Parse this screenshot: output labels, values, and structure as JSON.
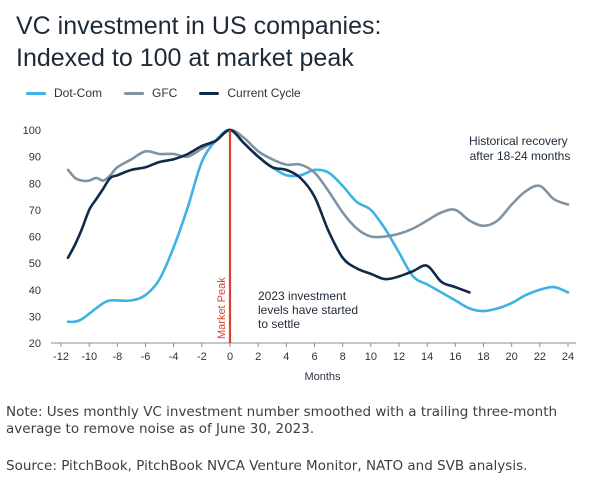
{
  "chart_data": {
    "type": "line",
    "title": "VC investment in US companies: Indexed to 100 at market peak",
    "title_lines": [
      "VC investment in US companies:",
      "Indexed to 100 at market peak"
    ],
    "xlabel": "Months",
    "ylabel": "",
    "xlim": [
      -12,
      24
    ],
    "ylim": [
      20,
      100
    ],
    "xticks": [
      -12,
      -10,
      -8,
      -6,
      -4,
      -2,
      0,
      2,
      4,
      6,
      8,
      10,
      12,
      14,
      16,
      18,
      20,
      22,
      24
    ],
    "xtick_labels": [
      "-12",
      "-10",
      "-8",
      "-6",
      "-4",
      "-2",
      "0",
      "2",
      "4",
      "6",
      "8",
      "10",
      "12",
      "14",
      "16",
      "18",
      "20",
      "22",
      "24"
    ],
    "yticks": [
      20,
      30,
      40,
      50,
      60,
      70,
      80,
      90,
      100
    ],
    "ytick_labels": [
      "20",
      "30",
      "40",
      "50",
      "60",
      "70",
      "80",
      "90",
      "100"
    ],
    "grid": false,
    "legend_position": "top-left",
    "series": [
      {
        "name": "Dot-Com",
        "color": "#3db3e3",
        "x": [
          -11.5,
          -11,
          -10.5,
          -10,
          -9,
          -8.5,
          -8,
          -7,
          -6,
          -5,
          -4,
          -3,
          -2,
          -1,
          0,
          1,
          2,
          3,
          4,
          5,
          6,
          7,
          8,
          9,
          10,
          11,
          12,
          13,
          14,
          15,
          16,
          17,
          18,
          19,
          20,
          21,
          22,
          23,
          24
        ],
        "values": [
          28,
          28,
          29,
          31,
          35,
          36,
          36,
          36,
          38,
          44,
          56,
          71,
          88,
          96,
          100,
          95,
          90,
          86,
          83,
          83,
          85,
          84,
          79,
          73,
          70,
          63,
          54,
          45,
          42,
          39,
          36,
          33,
          32,
          33,
          35,
          38,
          40,
          41,
          39
        ]
      },
      {
        "name": "GFC",
        "color": "#7f93a3",
        "x": [
          -11.5,
          -11,
          -10.5,
          -10,
          -9.5,
          -9,
          -8.5,
          -8,
          -7,
          -6,
          -5,
          -4,
          -3,
          -2,
          -1,
          0,
          1,
          2,
          3,
          4,
          5,
          6,
          7,
          8,
          9,
          10,
          11,
          12,
          13,
          14,
          15,
          16,
          17,
          18,
          19,
          20,
          21,
          22,
          23,
          24
        ],
        "values": [
          85,
          82,
          81,
          81,
          82,
          81,
          83,
          86,
          89,
          92,
          91,
          91,
          90,
          93,
          96,
          100,
          97,
          92,
          89,
          87,
          87,
          84,
          77,
          69,
          63,
          60,
          60,
          61,
          63,
          66,
          69,
          70,
          66,
          64,
          66,
          72,
          77,
          79,
          74,
          72
        ]
      },
      {
        "name": "Current Cycle",
        "color": "#102a49",
        "x": [
          -11.5,
          -11,
          -10.5,
          -10,
          -9.5,
          -9,
          -8.5,
          -8,
          -7,
          -6,
          -5,
          -4,
          -3,
          -2,
          -1,
          0,
          1,
          2,
          3,
          4,
          5,
          6,
          7,
          8,
          9,
          10,
          11,
          12,
          13,
          14,
          15,
          16,
          17
        ],
        "values": [
          52,
          57,
          63,
          70,
          74,
          78,
          82,
          83,
          85,
          86,
          88,
          89,
          91,
          94,
          96,
          100,
          95,
          90,
          86,
          85,
          82,
          75,
          62,
          52,
          48,
          46,
          44,
          45,
          47,
          49,
          43,
          41,
          39
        ]
      }
    ],
    "peak_marker": {
      "x": 0,
      "label": "Market Peak",
      "color": "#d9432d"
    },
    "annotations": [
      {
        "id": "historical",
        "lines": [
          "Historical recovery",
          "after 18-24 months"
        ]
      },
      {
        "id": "investment",
        "lines": [
          "2023 investment",
          "levels have started",
          "to settle"
        ]
      }
    ]
  },
  "footer": {
    "note": "Note: Uses monthly VC investment number smoothed with a trailing three-month average to remove noise as of June 30, 2023.",
    "source": "Source: PitchBook, PitchBook NVCA Venture Monitor, NATO and SVB analysis."
  }
}
